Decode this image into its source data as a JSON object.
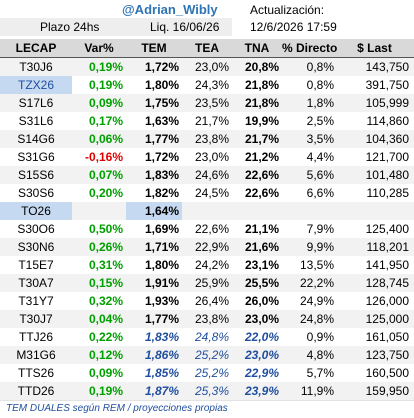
{
  "header": {
    "handle": "@Adrian_Wibly",
    "update_label": "Actualización:",
    "update_time": "12/6/2026 17:59",
    "term": "Plazo 24hs",
    "settlement": "Liq.  16/06/26"
  },
  "table": {
    "columns": [
      "LECAP",
      "Var%",
      "TEM",
      "TEA",
      "TNA",
      "% Directo",
      "$ Last"
    ],
    "rows": [
      [
        "T30J6",
        "0,19%",
        "1,72%",
        "23,0%",
        "20,8%",
        "0,8%",
        "143,750"
      ],
      [
        "TZX26",
        "0,19%",
        "1,80%",
        "24,3%",
        "21,8%",
        "0,8%",
        "391,750"
      ],
      [
        "S17L6",
        "0,09%",
        "1,75%",
        "23,5%",
        "21,8%",
        "1,8%",
        "105,999"
      ],
      [
        "S31L6",
        "0,17%",
        "1,63%",
        "21,7%",
        "19,9%",
        "2,5%",
        "114,860"
      ],
      [
        "S14G6",
        "0,06%",
        "1,77%",
        "23,8%",
        "21,7%",
        "3,5%",
        "104,360"
      ],
      [
        "S31G6",
        "-0,16%",
        "1,72%",
        "23,0%",
        "21,2%",
        "4,4%",
        "121,700"
      ],
      [
        "S15S6",
        "0,07%",
        "1,83%",
        "24,6%",
        "22,6%",
        "5,6%",
        "101,480"
      ],
      [
        "S30S6",
        "0,20%",
        "1,82%",
        "24,5%",
        "22,6%",
        "6,6%",
        "110,285"
      ],
      [
        "TO26",
        null,
        "1,64%",
        null,
        null,
        null,
        null
      ],
      [
        "S30O6",
        "0,50%",
        "1,69%",
        "22,6%",
        "21,1%",
        "7,9%",
        "125,400"
      ],
      [
        "S30N6",
        "0,26%",
        "1,71%",
        "22,9%",
        "21,6%",
        "9,9%",
        "118,201"
      ],
      [
        "T15E7",
        "0,31%",
        "1,80%",
        "24,2%",
        "23,1%",
        "13,5%",
        "141,950"
      ],
      [
        "T30A7",
        "0,15%",
        "1,91%",
        "25,9%",
        "25,5%",
        "22,2%",
        "128,745"
      ],
      [
        "T31Y7",
        "0,32%",
        "1,93%",
        "26,4%",
        "26,0%",
        "24,9%",
        "126,000"
      ],
      [
        "T30J7",
        "0,04%",
        "1,77%",
        "23,8%",
        "23,0%",
        "24,8%",
        "125,000"
      ],
      [
        "TTJ26",
        "0,22%",
        "1,83%",
        "24,8%",
        "22,0%",
        "0,9%",
        "161,050"
      ],
      [
        "M31G6",
        "0,12%",
        "1,86%",
        "25,2%",
        "23,0%",
        "4,8%",
        "123,750"
      ],
      [
        "TTS26",
        "0,09%",
        "1,85%",
        "25,2%",
        "22,9%",
        "5,7%",
        "160,500"
      ],
      [
        "TTD26",
        "0,19%",
        "1,87%",
        "25,3%",
        "23,9%",
        "11,9%",
        "159,950"
      ]
    ]
  },
  "footer": "TEM DUALES según REM / proyecciones propias"
}
